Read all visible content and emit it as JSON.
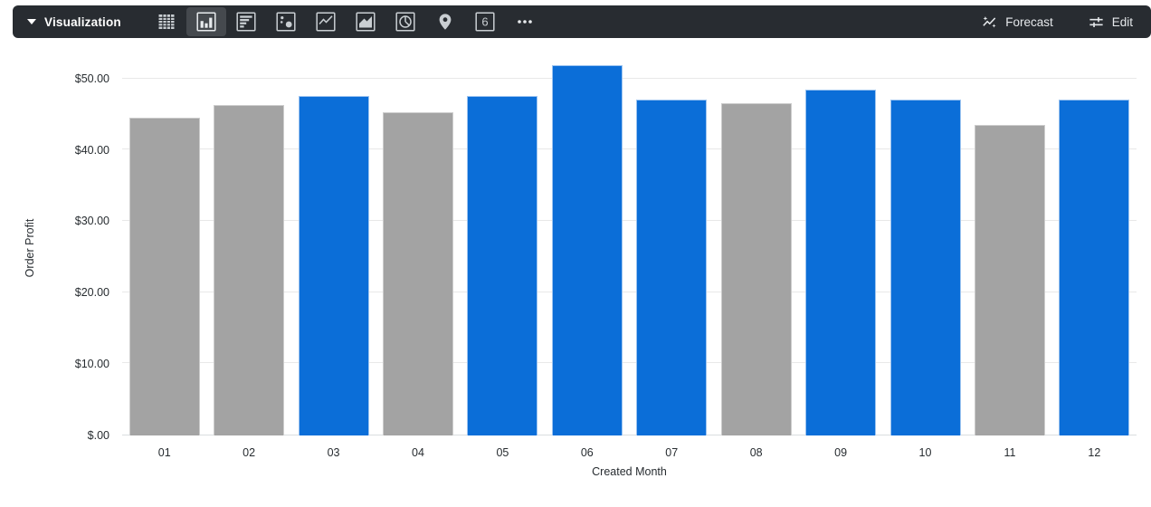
{
  "colors": {
    "toolbar_bg": "#282c31",
    "toolbar_selected_bg": "#45494e",
    "icon_color": "#c9ced2",
    "bar_blue": "#0b6ed8",
    "bar_gray": "#a3a3a3",
    "grid_line": "#e8e8e8",
    "tick_text": "#272c30"
  },
  "toolbar": {
    "visualization_label": "Visualization",
    "chart_type_icons": [
      {
        "name": "table-icon",
        "selected": false
      },
      {
        "name": "column-chart-icon",
        "selected": true
      },
      {
        "name": "bar-chart-icon",
        "selected": false
      },
      {
        "name": "scatter-plot-icon",
        "selected": false
      },
      {
        "name": "line-chart-icon",
        "selected": false
      },
      {
        "name": "area-chart-icon",
        "selected": false
      },
      {
        "name": "pie-chart-icon",
        "selected": false
      },
      {
        "name": "map-pin-icon",
        "selected": false
      },
      {
        "name": "single-value-icon",
        "selected": false,
        "glyph": "6"
      },
      {
        "name": "more-options-icon",
        "selected": false
      }
    ],
    "forecast_label": "Forecast",
    "edit_label": "Edit"
  },
  "chart_data": {
    "type": "bar",
    "title": "",
    "categories": [
      "01",
      "02",
      "03",
      "04",
      "05",
      "06",
      "07",
      "08",
      "09",
      "10",
      "11",
      "12"
    ],
    "values": [
      44.5,
      46.3,
      47.6,
      45.3,
      47.5,
      51.9,
      47.1,
      46.6,
      48.4,
      47.1,
      43.5,
      47.1
    ],
    "bar_colors": [
      "gray",
      "gray",
      "blue",
      "gray",
      "blue",
      "blue",
      "blue",
      "gray",
      "blue",
      "blue",
      "gray",
      "blue"
    ],
    "xlabel": "Created Month",
    "ylabel": "Order Profit",
    "ylim": [
      0,
      52.5
    ],
    "y_ticks": [
      {
        "value": 0,
        "label": "$.00"
      },
      {
        "value": 10,
        "label": "$10.00"
      },
      {
        "value": 20,
        "label": "$20.00"
      },
      {
        "value": 30,
        "label": "$30.00"
      },
      {
        "value": 40,
        "label": "$40.00"
      },
      {
        "value": 50,
        "label": "$50.00"
      }
    ],
    "grid": true,
    "legend": "none"
  }
}
